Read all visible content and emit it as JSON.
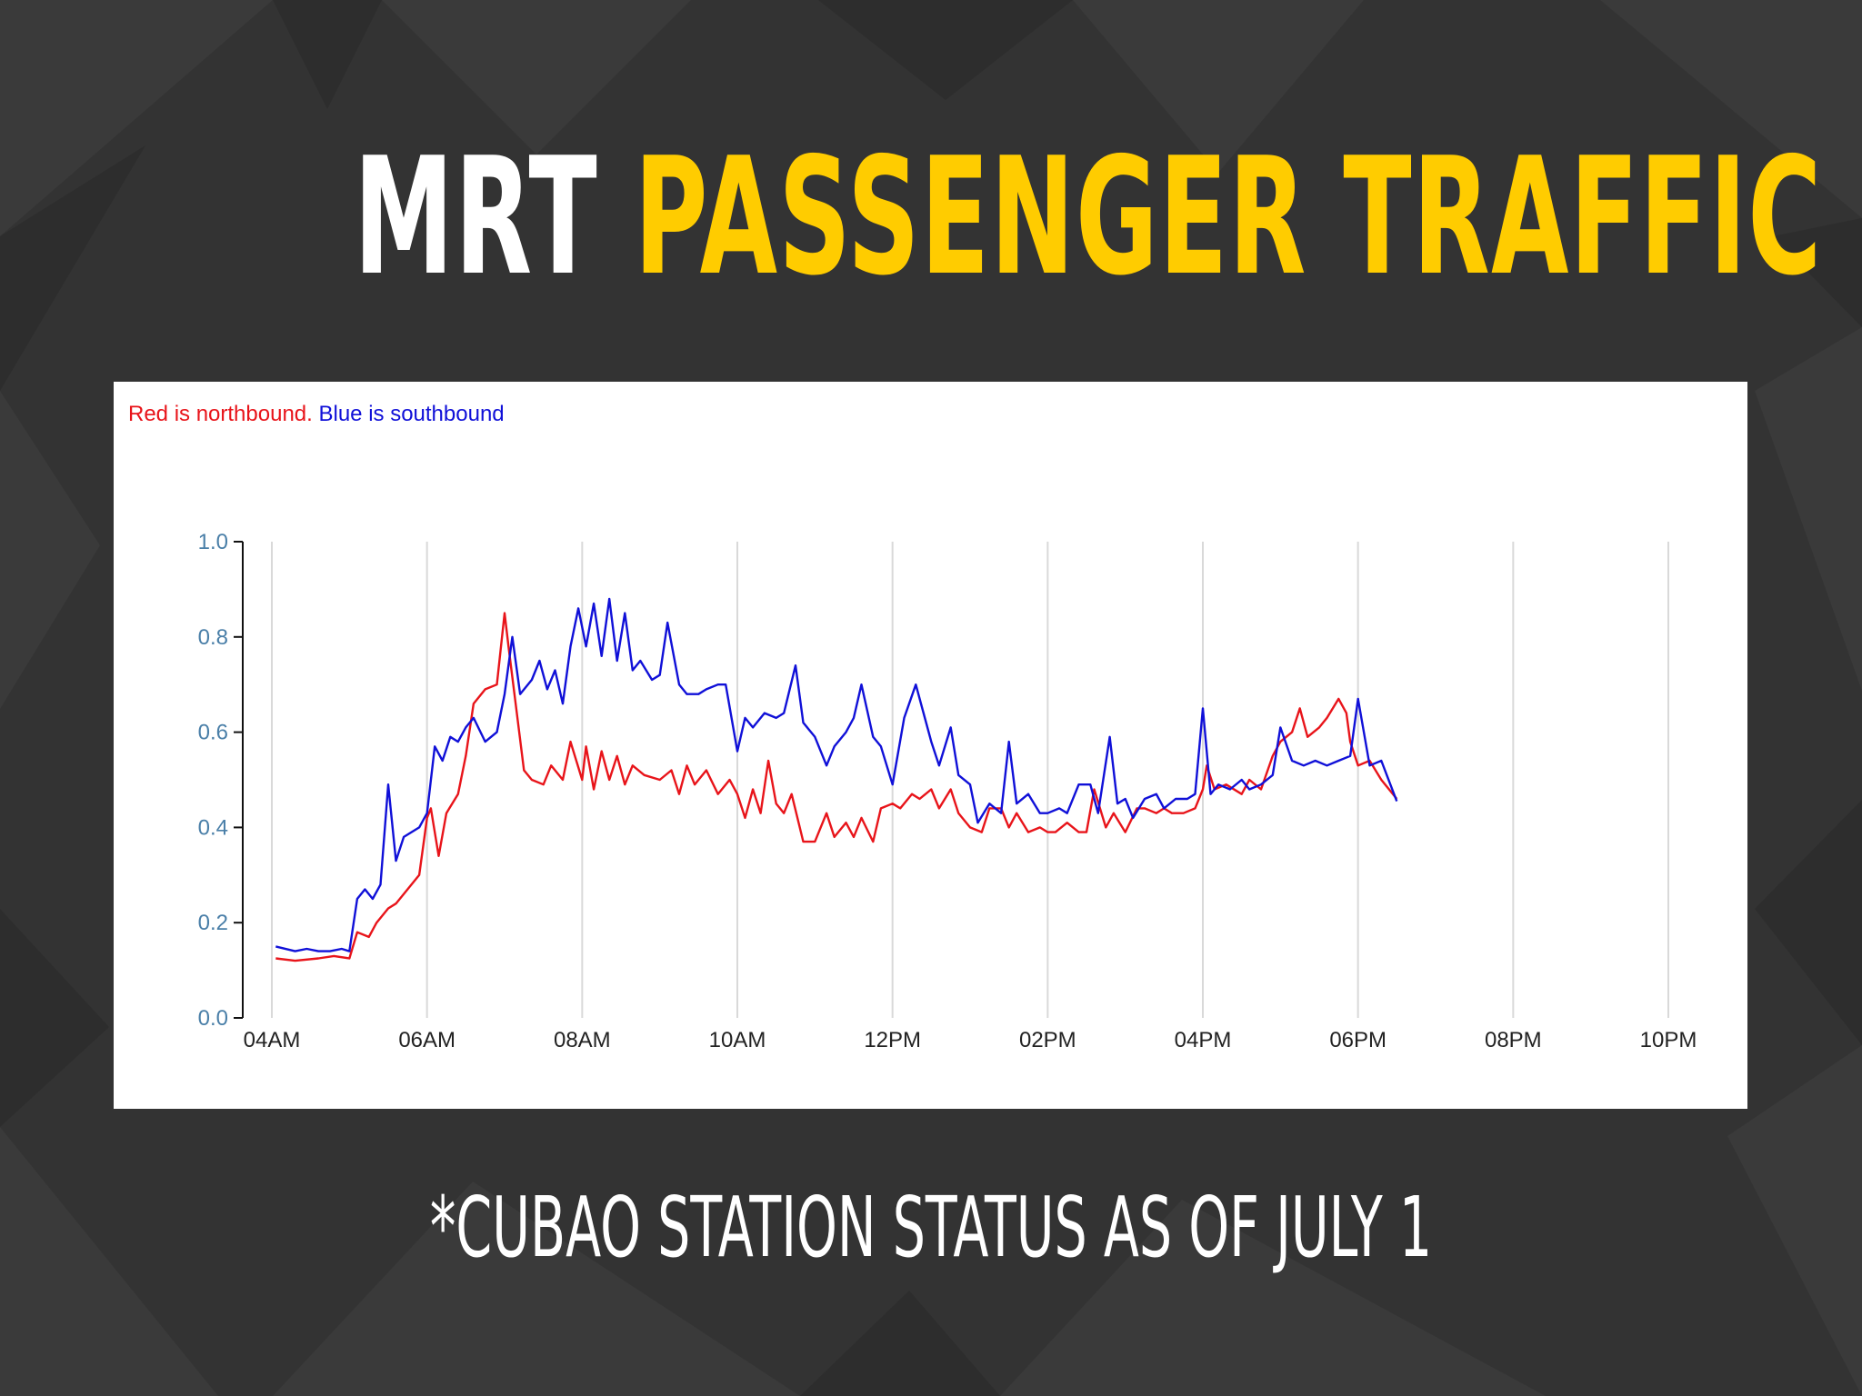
{
  "slide": {
    "title_part1": "MRT",
    "title_part2": "PASSENGER TRAFFIC",
    "subtitle": "*CUBAO STATION STATUS AS OF JULY 1"
  },
  "colors": {
    "background": "#333333",
    "title_white": "#ffffff",
    "title_yellow": "#ffcc00",
    "northbound": "#e8141a",
    "southbound": "#1010d8",
    "axis_label": "#4a7fa8",
    "grid": "#d9d9d9"
  },
  "chart_data": {
    "type": "line",
    "legend_text": {
      "red": "Red is northbound.",
      "blue": "Blue is southbound"
    },
    "xlim": [
      4,
      22
    ],
    "ylim": [
      0,
      1
    ],
    "x_ticks": [
      {
        "x": 4,
        "label": "04AM"
      },
      {
        "x": 6,
        "label": "06AM"
      },
      {
        "x": 8,
        "label": "08AM"
      },
      {
        "x": 10,
        "label": "10AM"
      },
      {
        "x": 12,
        "label": "12PM"
      },
      {
        "x": 14,
        "label": "02PM"
      },
      {
        "x": 16,
        "label": "04PM"
      },
      {
        "x": 18,
        "label": "06PM"
      },
      {
        "x": 20,
        "label": "08PM"
      },
      {
        "x": 22,
        "label": "10PM"
      }
    ],
    "y_ticks": [
      "0.0",
      "0.2",
      "0.4",
      "0.6",
      "0.8",
      "1.0"
    ],
    "grid": "vertical",
    "series": [
      {
        "color": "red",
        "x": [
          4.05,
          4.3,
          4.6,
          4.8,
          5.0,
          5.1,
          5.25,
          5.35,
          5.5,
          5.6,
          5.75,
          5.9,
          6.0,
          6.05,
          6.15,
          6.25,
          6.4,
          6.5,
          6.6,
          6.75,
          6.9,
          7.0,
          7.05,
          7.15,
          7.25,
          7.35,
          7.5,
          7.6,
          7.75,
          7.85,
          8.0,
          8.05,
          8.15,
          8.25,
          8.35,
          8.45,
          8.55,
          8.65,
          8.8,
          9.0,
          9.15,
          9.25,
          9.35,
          9.45,
          9.6,
          9.75,
          9.9,
          10.0,
          10.1,
          10.2,
          10.3,
          10.4,
          10.5,
          10.6,
          10.7,
          10.85,
          11.0,
          11.15,
          11.25,
          11.4,
          11.5,
          11.6,
          11.75,
          11.85,
          12.0,
          12.1,
          12.25,
          12.35,
          12.5,
          12.6,
          12.75,
          12.85,
          13.0,
          13.15,
          13.25,
          13.4,
          13.5,
          13.6,
          13.75,
          13.9,
          14.0,
          14.1,
          14.25,
          14.4,
          14.5,
          14.6,
          14.75,
          14.85,
          15.0,
          15.15,
          15.25,
          15.4,
          15.5,
          15.6,
          15.75,
          15.9,
          16.0,
          16.05,
          16.15,
          16.3,
          16.5,
          16.6,
          16.75,
          16.9,
          17.0,
          17.15,
          17.25,
          17.35,
          17.5,
          17.6,
          17.75,
          17.85,
          17.9,
          18.0,
          18.15,
          18.3,
          18.5
        ],
        "y": [
          0.125,
          0.12,
          0.125,
          0.13,
          0.125,
          0.18,
          0.17,
          0.2,
          0.23,
          0.24,
          0.27,
          0.3,
          0.42,
          0.44,
          0.34,
          0.43,
          0.47,
          0.55,
          0.66,
          0.69,
          0.7,
          0.85,
          0.78,
          0.65,
          0.52,
          0.5,
          0.49,
          0.53,
          0.5,
          0.58,
          0.5,
          0.57,
          0.48,
          0.56,
          0.5,
          0.55,
          0.49,
          0.53,
          0.51,
          0.5,
          0.52,
          0.47,
          0.53,
          0.49,
          0.52,
          0.47,
          0.5,
          0.47,
          0.42,
          0.48,
          0.43,
          0.54,
          0.45,
          0.43,
          0.47,
          0.37,
          0.37,
          0.43,
          0.38,
          0.41,
          0.38,
          0.42,
          0.37,
          0.44,
          0.45,
          0.44,
          0.47,
          0.46,
          0.48,
          0.44,
          0.48,
          0.43,
          0.4,
          0.39,
          0.44,
          0.44,
          0.4,
          0.43,
          0.39,
          0.4,
          0.39,
          0.39,
          0.41,
          0.39,
          0.39,
          0.48,
          0.4,
          0.43,
          0.39,
          0.44,
          0.44,
          0.43,
          0.44,
          0.43,
          0.43,
          0.44,
          0.48,
          0.53,
          0.48,
          0.49,
          0.47,
          0.5,
          0.48,
          0.55,
          0.58,
          0.6,
          0.65,
          0.59,
          0.61,
          0.63,
          0.67,
          0.64,
          0.58,
          0.53,
          0.54,
          0.5,
          0.46
        ]
      },
      {
        "color": "blue",
        "x": [
          4.05,
          4.3,
          4.45,
          4.6,
          4.75,
          4.9,
          5.0,
          5.1,
          5.2,
          5.3,
          5.4,
          5.5,
          5.6,
          5.7,
          5.9,
          6.0,
          6.1,
          6.2,
          6.3,
          6.4,
          6.5,
          6.6,
          6.75,
          6.9,
          7.0,
          7.1,
          7.2,
          7.35,
          7.45,
          7.55,
          7.65,
          7.75,
          7.85,
          7.95,
          8.05,
          8.15,
          8.25,
          8.35,
          8.45,
          8.55,
          8.65,
          8.75,
          8.9,
          9.0,
          9.1,
          9.25,
          9.35,
          9.5,
          9.6,
          9.75,
          9.85,
          10.0,
          10.1,
          10.2,
          10.35,
          10.5,
          10.6,
          10.75,
          10.85,
          11.0,
          11.15,
          11.25,
          11.4,
          11.5,
          11.6,
          11.75,
          11.85,
          12.0,
          12.15,
          12.3,
          12.5,
          12.6,
          12.75,
          12.85,
          13.0,
          13.1,
          13.25,
          13.4,
          13.5,
          13.6,
          13.75,
          13.9,
          14.0,
          14.15,
          14.25,
          14.4,
          14.55,
          14.65,
          14.8,
          14.9,
          15.0,
          15.1,
          15.25,
          15.4,
          15.5,
          15.65,
          15.8,
          15.9,
          16.0,
          16.1,
          16.2,
          16.35,
          16.5,
          16.6,
          16.75,
          16.9,
          17.0,
          17.15,
          17.3,
          17.45,
          17.6,
          17.75,
          17.9,
          18.0,
          18.15,
          18.3,
          18.5
        ],
        "y": [
          0.15,
          0.14,
          0.145,
          0.14,
          0.14,
          0.145,
          0.14,
          0.25,
          0.27,
          0.25,
          0.28,
          0.49,
          0.33,
          0.38,
          0.4,
          0.43,
          0.57,
          0.54,
          0.59,
          0.58,
          0.61,
          0.63,
          0.58,
          0.6,
          0.68,
          0.8,
          0.68,
          0.71,
          0.75,
          0.69,
          0.73,
          0.66,
          0.78,
          0.86,
          0.78,
          0.87,
          0.76,
          0.88,
          0.75,
          0.85,
          0.73,
          0.75,
          0.71,
          0.72,
          0.83,
          0.7,
          0.68,
          0.68,
          0.69,
          0.7,
          0.7,
          0.56,
          0.63,
          0.61,
          0.64,
          0.63,
          0.64,
          0.74,
          0.62,
          0.59,
          0.53,
          0.57,
          0.6,
          0.63,
          0.7,
          0.59,
          0.57,
          0.49,
          0.63,
          0.7,
          0.58,
          0.53,
          0.61,
          0.51,
          0.49,
          0.41,
          0.45,
          0.43,
          0.58,
          0.45,
          0.47,
          0.43,
          0.43,
          0.44,
          0.43,
          0.49,
          0.49,
          0.43,
          0.59,
          0.45,
          0.46,
          0.42,
          0.46,
          0.47,
          0.44,
          0.46,
          0.46,
          0.47,
          0.65,
          0.47,
          0.49,
          0.48,
          0.5,
          0.48,
          0.49,
          0.51,
          0.61,
          0.54,
          0.53,
          0.54,
          0.53,
          0.54,
          0.55,
          0.67,
          0.53,
          0.54,
          0.455
        ]
      }
    ]
  }
}
